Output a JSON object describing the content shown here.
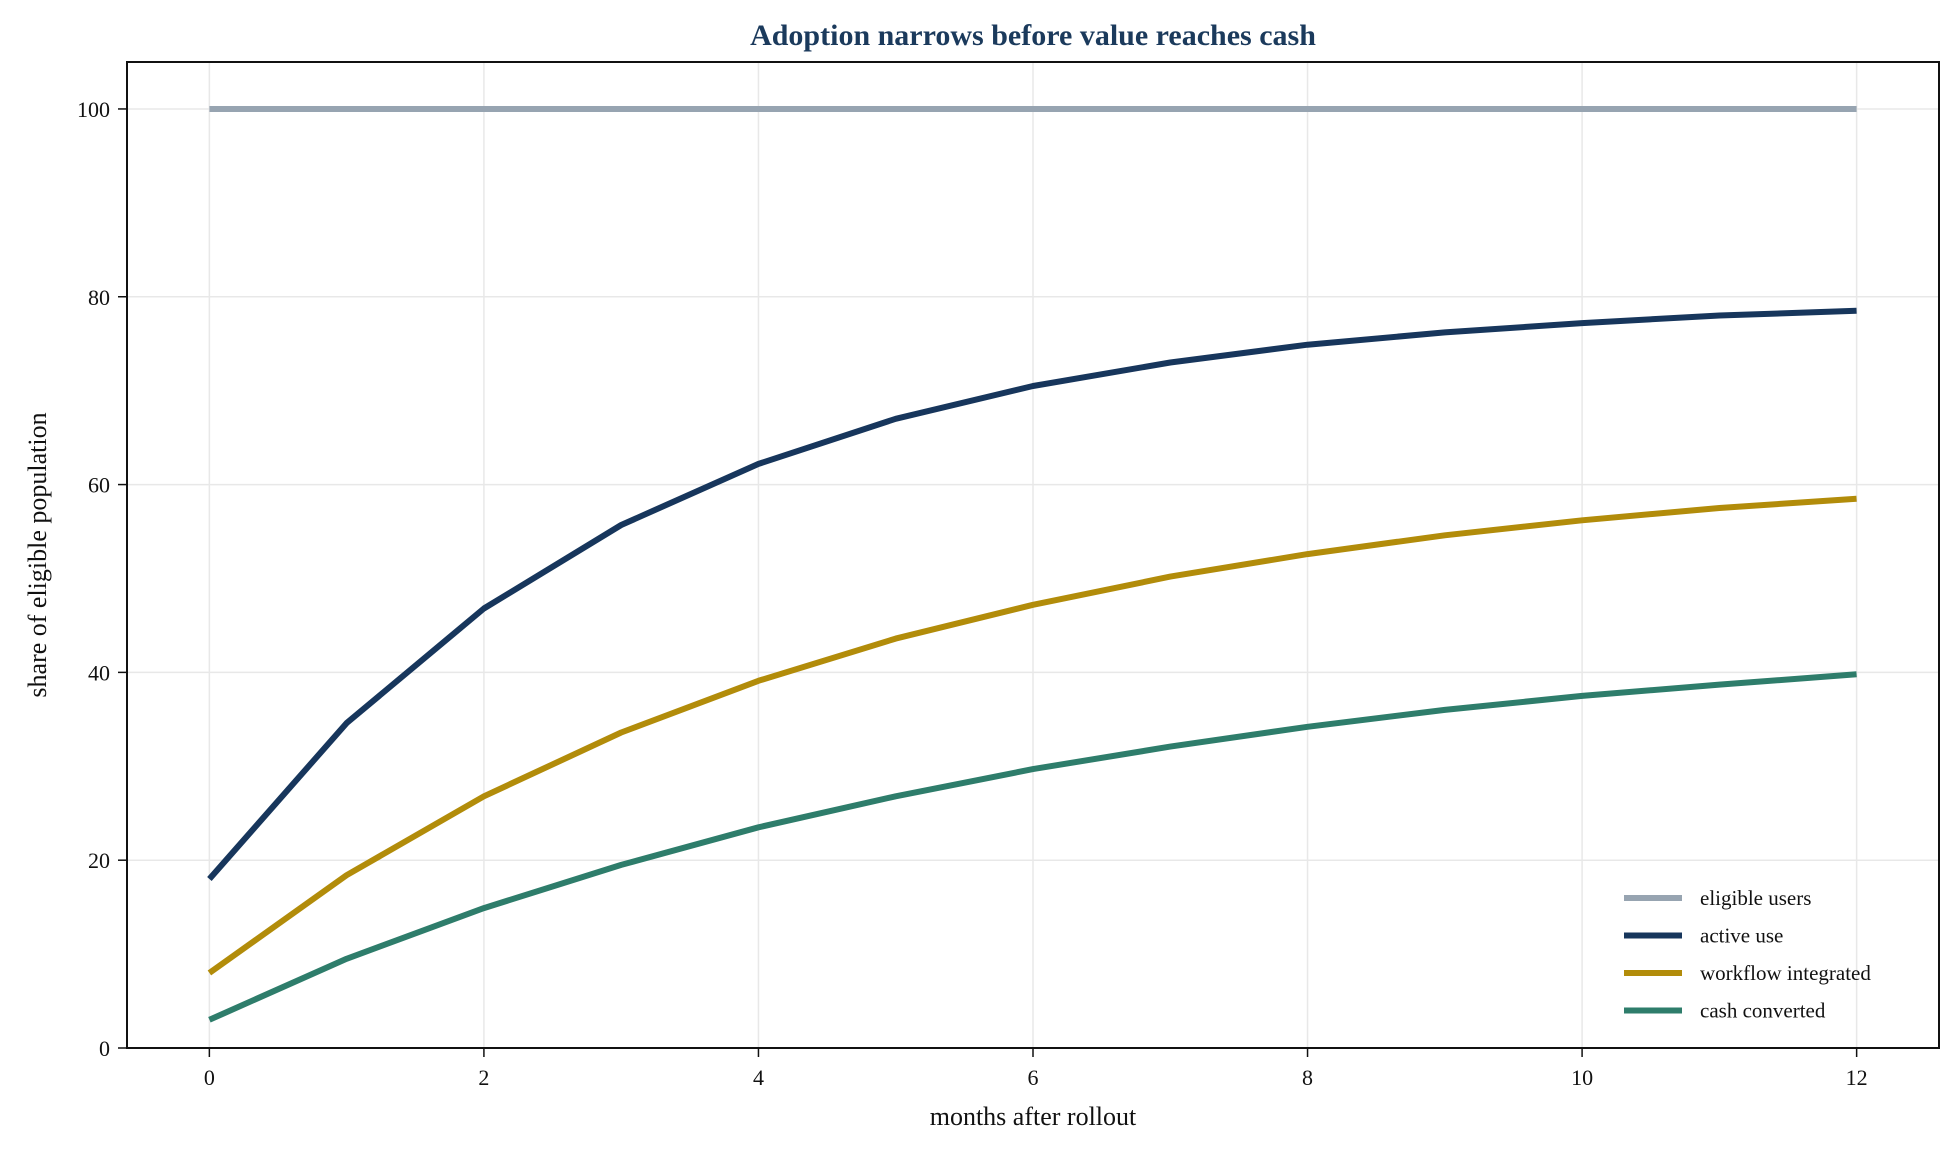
{
  "colors": {
    "title": "#1b3a5c",
    "grid": "#e8e8e8",
    "axis": "#111111"
  },
  "chart_data": {
    "type": "line",
    "title": "Adoption narrows before value reaches cash",
    "xlabel": "months after rollout",
    "ylabel": "share of eligible population",
    "x": [
      0,
      1,
      2,
      3,
      4,
      5,
      6,
      7,
      8,
      9,
      10,
      11,
      12
    ],
    "xlim": [
      -0.6,
      12.6
    ],
    "ylim": [
      0,
      105
    ],
    "xticks": [
      0,
      2,
      4,
      6,
      8,
      10,
      12
    ],
    "yticks": [
      0,
      20,
      40,
      60,
      80,
      100
    ],
    "grid": true,
    "legend_position": "bottom-right",
    "series": [
      {
        "name": "eligible users",
        "color": "#97a4b1",
        "values": [
          100,
          100,
          100,
          100,
          100,
          100,
          100,
          100,
          100,
          100,
          100,
          100,
          100
        ]
      },
      {
        "name": "active use",
        "color": "#17365c",
        "values": [
          18,
          34.6,
          46.8,
          55.7,
          62.2,
          67,
          70.5,
          73,
          74.9,
          76.2,
          77.2,
          78,
          78.5
        ]
      },
      {
        "name": "workflow integrated",
        "color": "#b28c0a",
        "values": [
          8,
          18.4,
          26.8,
          33.6,
          39.1,
          43.6,
          47.2,
          50.2,
          52.6,
          54.6,
          56.2,
          57.5,
          58.5
        ]
      },
      {
        "name": "cash converted",
        "color": "#2e7d6b",
        "values": [
          3,
          9.5,
          14.9,
          19.5,
          23.5,
          26.8,
          29.7,
          32.1,
          34.2,
          36,
          37.5,
          38.7,
          39.8
        ]
      }
    ]
  }
}
